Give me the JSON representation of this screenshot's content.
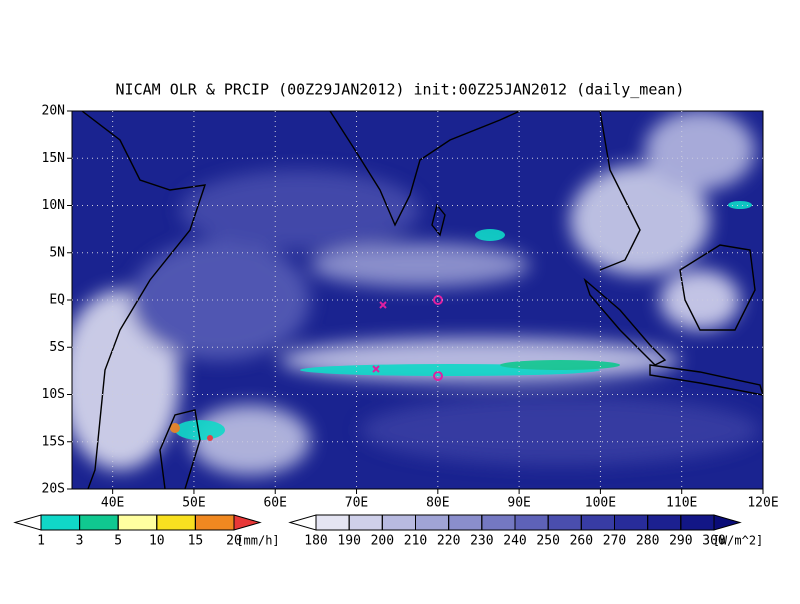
{
  "title": "NICAM OLR & PRCIP (00Z29JAN2012) init:00Z25JAN2012 (daily_mean)",
  "map": {
    "lonlim": [
      35,
      120
    ],
    "latlim": [
      -20,
      20
    ],
    "lonticks": [
      {
        "value": 40,
        "label": "40E"
      },
      {
        "value": 50,
        "label": "50E"
      },
      {
        "value": 60,
        "label": "60E"
      },
      {
        "value": 70,
        "label": "70E"
      },
      {
        "value": 80,
        "label": "80E"
      },
      {
        "value": 90,
        "label": "90E"
      },
      {
        "value": 100,
        "label": "100E"
      },
      {
        "value": 110,
        "label": "110E"
      },
      {
        "value": 120,
        "label": "120E"
      }
    ],
    "latticks": [
      {
        "value": -20,
        "label": "20S"
      },
      {
        "value": -15,
        "label": "15S"
      },
      {
        "value": -10,
        "label": "10S"
      },
      {
        "value": -5,
        "label": "5S"
      },
      {
        "value": 0,
        "label": "EQ"
      },
      {
        "value": 5,
        "label": "5N"
      },
      {
        "value": 10,
        "label": "10N"
      },
      {
        "value": 15,
        "label": "15N"
      },
      {
        "value": 20,
        "label": "20N"
      }
    ],
    "grid": true
  },
  "precip_colorbar": {
    "levels": [
      1,
      3,
      5,
      10,
      15,
      20
    ],
    "unit": "[mm/h]",
    "colors": [
      "#ffffff",
      "#10d8c8",
      "#10c890",
      "#ffffa0",
      "#f8e020",
      "#f08820",
      "#e83838"
    ]
  },
  "olr_colorbar": {
    "levels": [
      180,
      190,
      200,
      210,
      220,
      230,
      240,
      250,
      260,
      270,
      280,
      290,
      300
    ],
    "unit": "[W/m^2]",
    "colors": [
      "#ffffff",
      "#e4e4f2",
      "#cfd0ea",
      "#b8bae0",
      "#a0a4d6",
      "#8a8ecc",
      "#7478c2",
      "#5e62b8",
      "#4a4eae",
      "#383ca4",
      "#282c9a",
      "#1c2090",
      "#121686",
      "#0a0c78"
    ]
  }
}
